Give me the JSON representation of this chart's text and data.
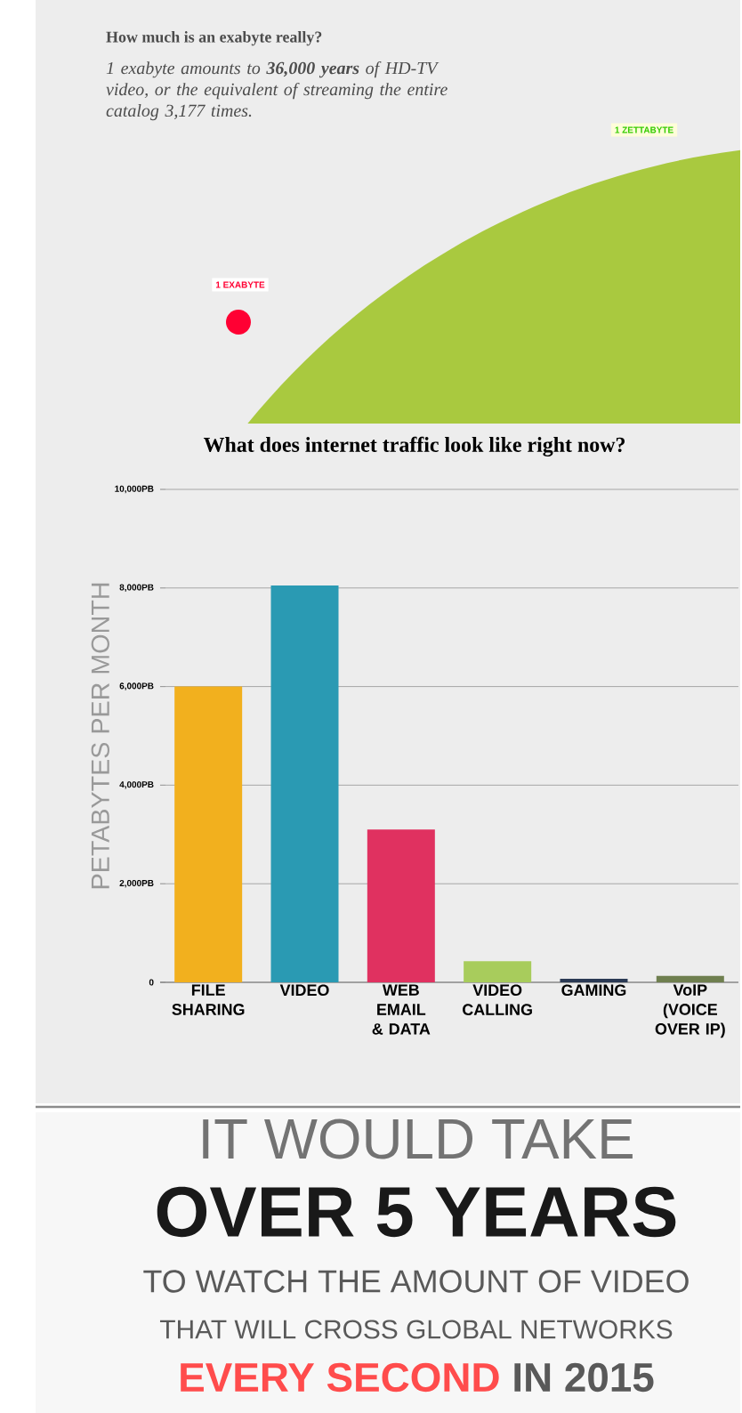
{
  "chart_data": {
    "type": "bar",
    "title": "What does internet traffic look like right now?",
    "ylabel": "PETABYTES PER MONTH",
    "categories": [
      "FILE SHARING",
      "VIDEO",
      "WEB EMAIL & DATA",
      "VIDEO CALLING",
      "GAMING",
      "VoIP (VOICE OVER IP)"
    ],
    "values": [
      6000,
      8050,
      3100,
      430,
      70,
      130
    ],
    "colors": [
      "#f2b01e",
      "#2a9ab3",
      "#e03160",
      "#a8cc5c",
      "#2b3a55",
      "#6f7f4f"
    ],
    "ylim": [
      0,
      10000
    ],
    "yticks": [
      0,
      {
        "value": 2000,
        "label": "2,000PB"
      },
      {
        "value": 4000,
        "label": "4,000PB"
      },
      {
        "value": 6000,
        "label": "6,000PB"
      },
      {
        "value": 8000,
        "label": "8,000PB"
      },
      {
        "value": 10000,
        "label": "10,000PB"
      }
    ],
    "grid": "y",
    "annotations": [
      "How much is an exabyte really?",
      "1 exabyte amounts to **36,000 years** of HD-TV video, or the equivalent of streaming the entire catalog 3,177 times.",
      "1 ZETTABYTE",
      "1 EXABYTE",
      "IT WOULD TAKE",
      "OVER 5 YEARS",
      "TO WATCH THE AMOUNT OF VIDEO",
      "THAT WILL CROSS GLOBAL NETWORKS",
      "EVERY SECOND",
      "IN 2015"
    ]
  }
}
